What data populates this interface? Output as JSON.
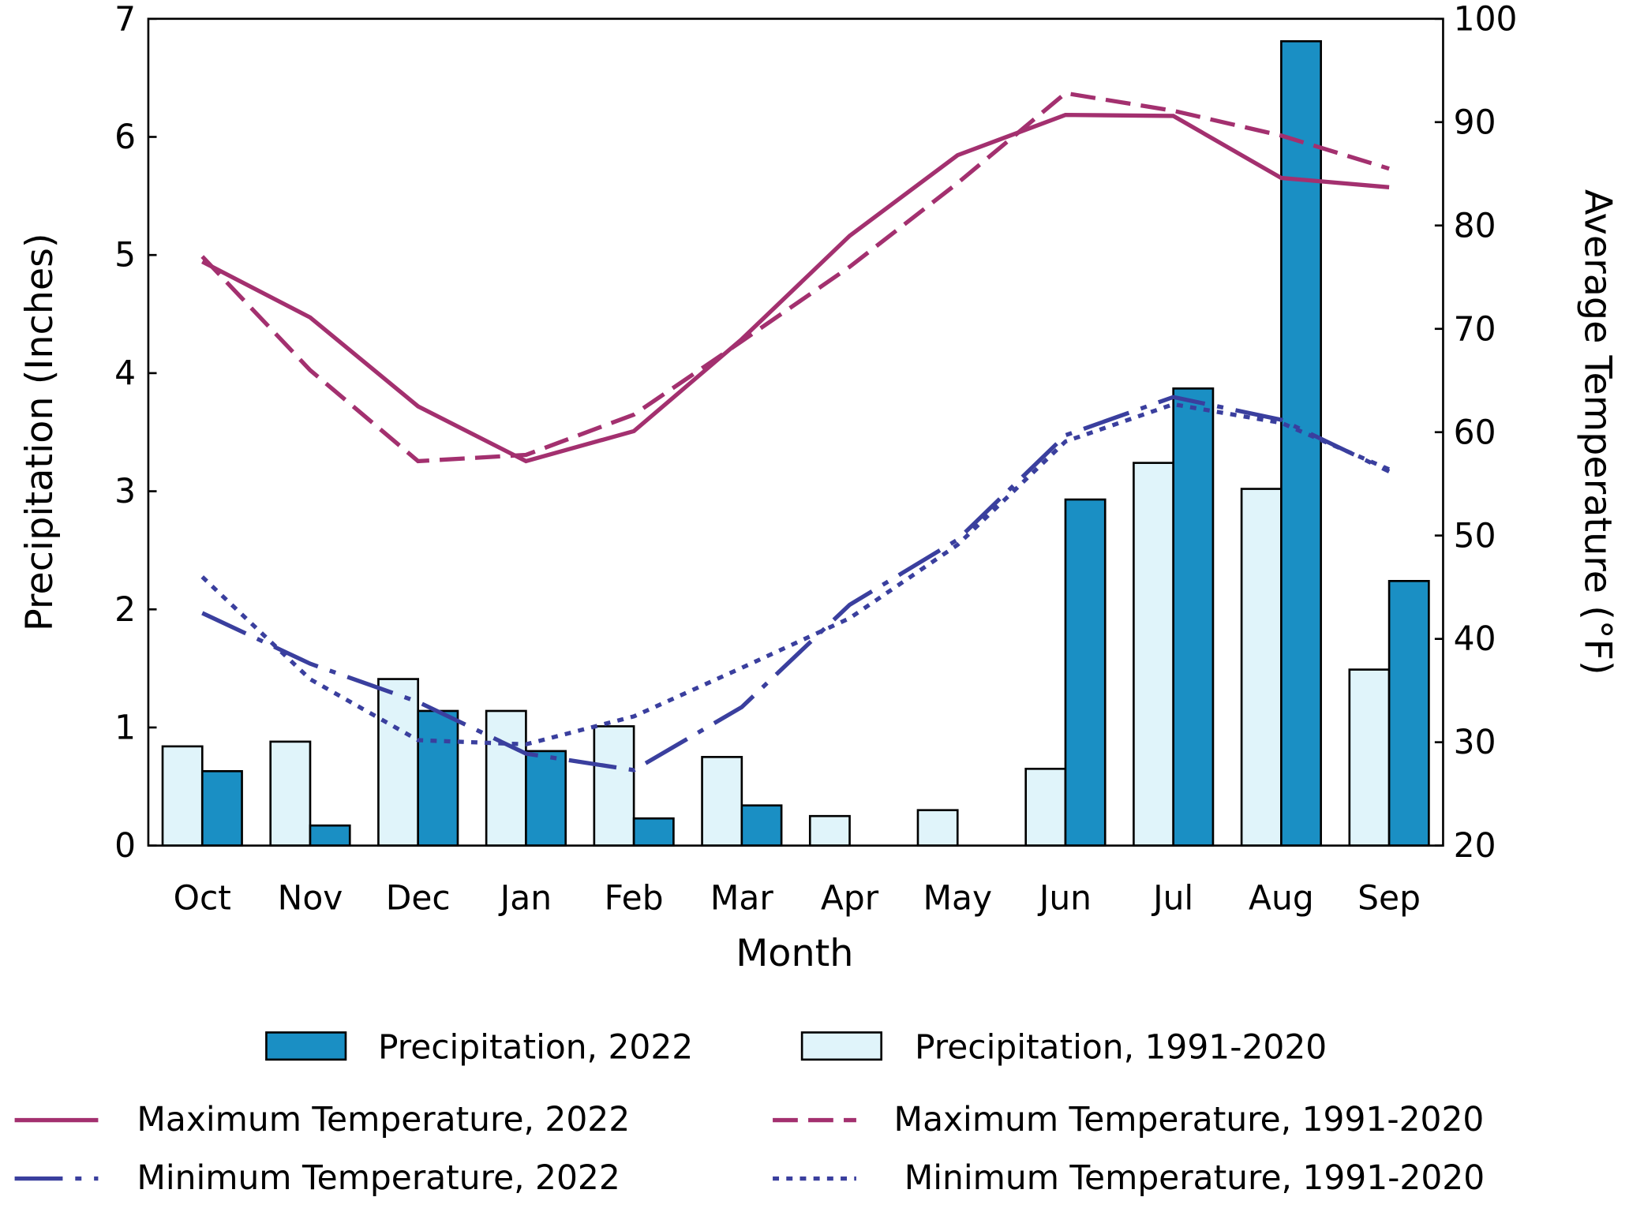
{
  "chart_data": {
    "type": "bar+line",
    "title": "",
    "xlabel": "Month",
    "ylabel_left": "Precipitation (Inches)",
    "ylabel_right": "Average Temperature (°F)",
    "ylabel_right_parts": {
      "pre": "Average Temperature (",
      "sup": "o",
      "post": "F)"
    },
    "ylim_left": [
      0,
      7
    ],
    "yticks_left": [
      0,
      1,
      2,
      3,
      4,
      5,
      6,
      7
    ],
    "ylim_right": [
      20,
      100
    ],
    "yticks_right": [
      20,
      30,
      40,
      50,
      60,
      70,
      80,
      90,
      100
    ],
    "grid": false,
    "legend_placement": "bottom",
    "categories": [
      "Oct",
      "Nov",
      "Dec",
      "Jan",
      "Feb",
      "Mar",
      "Apr",
      "May",
      "Jun",
      "Jul",
      "Aug",
      "Sep"
    ],
    "bar_series": [
      {
        "name": "Precipitation, 1991-2020",
        "color": "#e0f4fa",
        "axis": "left",
        "values": [
          0.84,
          0.88,
          1.41,
          1.14,
          1.01,
          0.75,
          0.25,
          0.3,
          0.65,
          3.24,
          3.02,
          1.49
        ]
      },
      {
        "name": "Precipitation, 2022",
        "color": "#1a8fc4",
        "axis": "left",
        "values": [
          0.63,
          0.17,
          1.14,
          0.8,
          0.23,
          0.34,
          0.0,
          0.0,
          2.93,
          3.87,
          6.81,
          2.24
        ]
      }
    ],
    "line_series": [
      {
        "name": "Maximum Temperature, 2022",
        "color": "#a3306f",
        "style": "solid",
        "axis": "right",
        "values": [
          76.5,
          71.1,
          62.5,
          57.2,
          60.1,
          69.0,
          79.0,
          86.8,
          90.7,
          90.6,
          84.6,
          83.7
        ]
      },
      {
        "name": "Maximum Temperature, 1991-2020",
        "color": "#a3306f",
        "style": "dashed",
        "axis": "right",
        "values": [
          77.0,
          66.0,
          57.2,
          57.8,
          61.7,
          68.8,
          76.0,
          84.1,
          92.8,
          91.1,
          88.7,
          85.5
        ]
      },
      {
        "name": "Minimum Temperature, 2022",
        "color": "#3a3f9e",
        "style": "long-dash",
        "axis": "right",
        "values": [
          42.5,
          37.6,
          33.9,
          28.9,
          27.3,
          33.4,
          43.3,
          49.6,
          59.7,
          63.4,
          61.2,
          56.2
        ]
      },
      {
        "name": "Minimum Temperature, 1991-2020",
        "color": "#3a3f9e",
        "style": "dotted",
        "axis": "right",
        "values": [
          46.0,
          36.1,
          30.2,
          29.8,
          32.5,
          37.2,
          42.0,
          49.1,
          59.1,
          62.7,
          60.9,
          56.4
        ]
      }
    ]
  }
}
